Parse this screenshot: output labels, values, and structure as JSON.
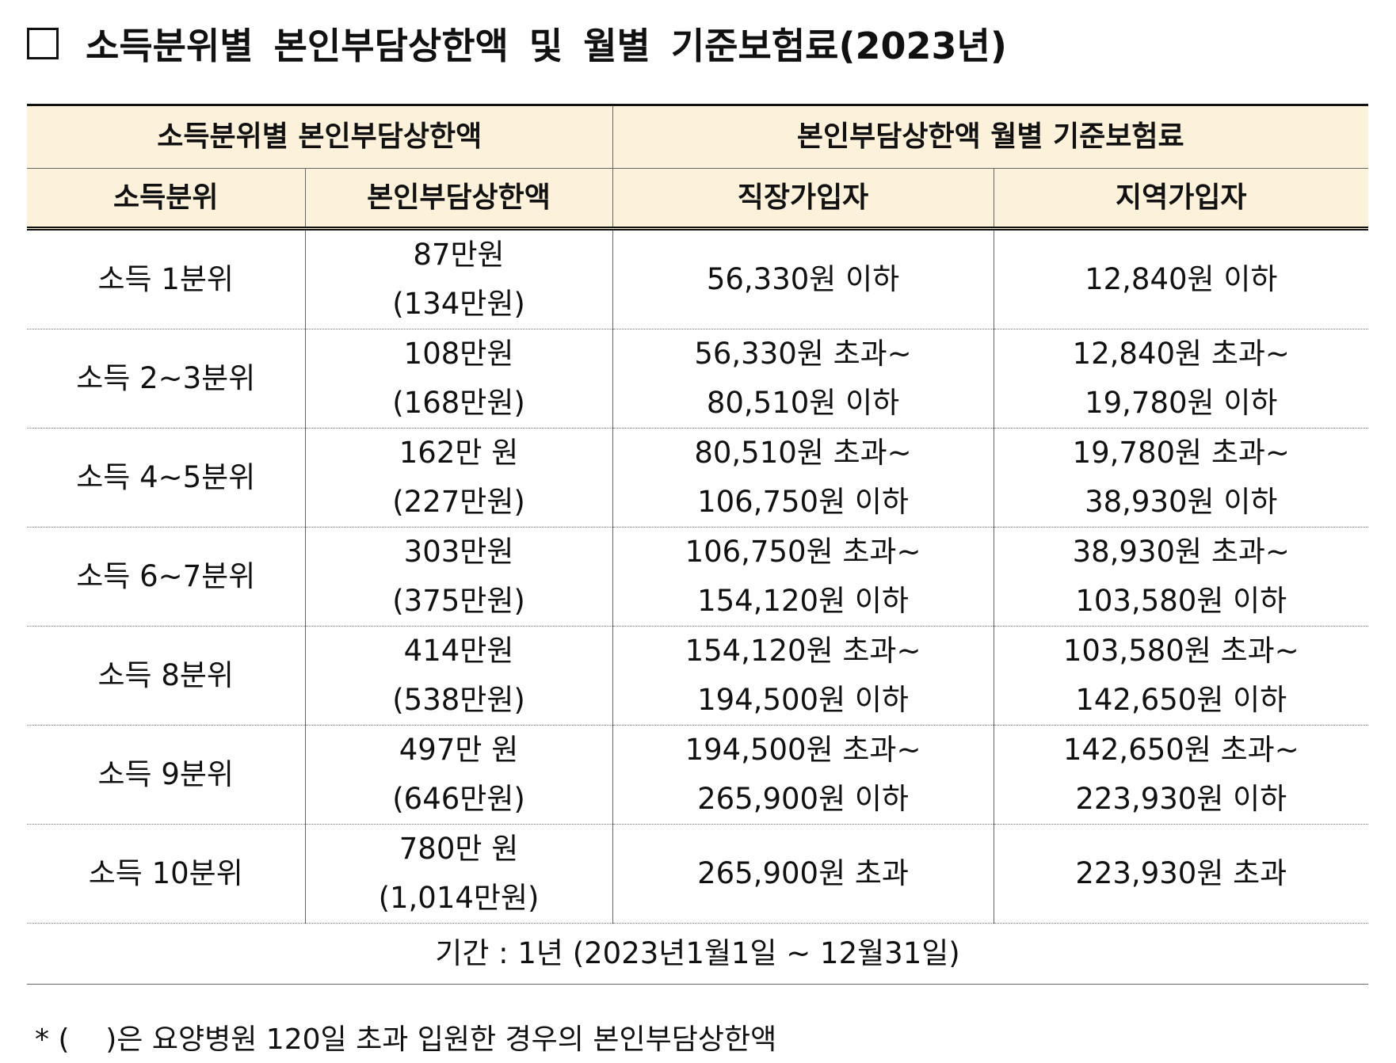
{
  "header": {
    "title": "소득분위별 본인부담상한액 및 월별 기준보험료(2023년)"
  },
  "table": {
    "group_headers": [
      "소득분위별 본인부담상한액",
      "본인부담상한액 월별 기준보험료"
    ],
    "columns": [
      "소득분위",
      "본인부담상한액",
      "직장가입자",
      "지역가입자"
    ],
    "rows": [
      {
        "quintile": "소득 1분위",
        "limit": [
          "87만원",
          "(134만원)"
        ],
        "workplace": [
          "56,330원 이하"
        ],
        "regional": [
          "12,840원 이하"
        ]
      },
      {
        "quintile": "소득 2~3분위",
        "limit": [
          "108만원",
          "(168만원)"
        ],
        "workplace": [
          "56,330원 초과~",
          "80,510원 이하"
        ],
        "regional": [
          "12,840원 초과~",
          "19,780원 이하"
        ]
      },
      {
        "quintile": "소득 4~5분위",
        "limit": [
          "162만 원",
          "(227만원)"
        ],
        "workplace": [
          "80,510원 초과~",
          "106,750원 이하"
        ],
        "regional": [
          "19,780원 초과~",
          "38,930원 이하"
        ]
      },
      {
        "quintile": "소득 6~7분위",
        "limit": [
          "303만원",
          "(375만원)"
        ],
        "workplace": [
          "106,750원 초과~",
          "154,120원 이하"
        ],
        "regional": [
          "38,930원 초과~",
          "103,580원 이하"
        ]
      },
      {
        "quintile": "소득 8분위",
        "limit": [
          "414만원",
          "(538만원)"
        ],
        "workplace": [
          "154,120원 초과~",
          "194,500원 이하"
        ],
        "regional": [
          "103,580원 초과~",
          "142,650원 이하"
        ]
      },
      {
        "quintile": "소득 9분위",
        "limit": [
          "497만 원",
          "(646만원)"
        ],
        "workplace": [
          "194,500원 초과~",
          "265,900원 이하"
        ],
        "regional": [
          "142,650원 초과~",
          "223,930원 이하"
        ]
      },
      {
        "quintile": "소득 10분위",
        "limit": [
          "780만 원",
          "(1,014만원)"
        ],
        "workplace": [
          "265,900원 초과"
        ],
        "regional": [
          "223,930원 초과"
        ]
      }
    ],
    "footer": "기간 : 1년 (2023년1월1일 ~ 12월31일)"
  },
  "note": "* (    )은 요양병원 120일 초과 입원한 경우의 본인부담상한액"
}
